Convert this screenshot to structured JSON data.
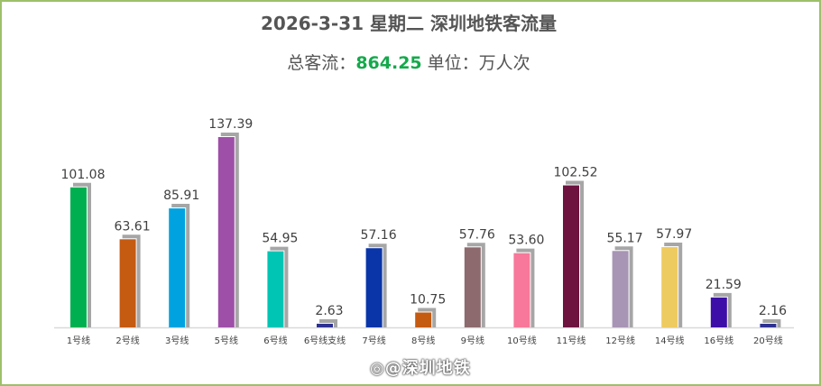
{
  "header": {
    "title": "2026-3-31 星期二  深圳地铁客流量",
    "total_label": "总客流：",
    "total_value": "864.25",
    "unit_label": " 单位：万人次"
  },
  "watermark": "◎@深圳地铁",
  "chart_data": {
    "type": "bar",
    "categories": [
      "1号线",
      "2号线",
      "3号线",
      "5号线",
      "6号线",
      "6号线支线",
      "7号线",
      "8号线",
      "9号线",
      "10号线",
      "11号线",
      "12号线",
      "14号线",
      "16号线",
      "20号线"
    ],
    "values": [
      101.08,
      63.61,
      85.91,
      137.39,
      54.95,
      2.63,
      57.16,
      10.75,
      57.76,
      53.6,
      102.52,
      55.17,
      57.97,
      21.59,
      2.16
    ],
    "value_labels": [
      "101.08",
      "63.61",
      "85.91",
      "137.39",
      "54.95",
      "2.63",
      "57.16",
      "10.75",
      "57.76",
      "53.60",
      "102.52",
      "55.17",
      "57.97",
      "21.59",
      "2.16"
    ],
    "colors": [
      "#00b050",
      "#c55a11",
      "#00a3e0",
      "#9e4fa8",
      "#00c5b5",
      "#2e3191",
      "#0a35a8",
      "#c55a11",
      "#8c6a6e",
      "#f7789a",
      "#6e1340",
      "#a895b5",
      "#eecb60",
      "#3d0fa8",
      "#2e3191"
    ],
    "shadow_color": "#a6a6a6",
    "ylim": [
      0,
      150
    ]
  }
}
